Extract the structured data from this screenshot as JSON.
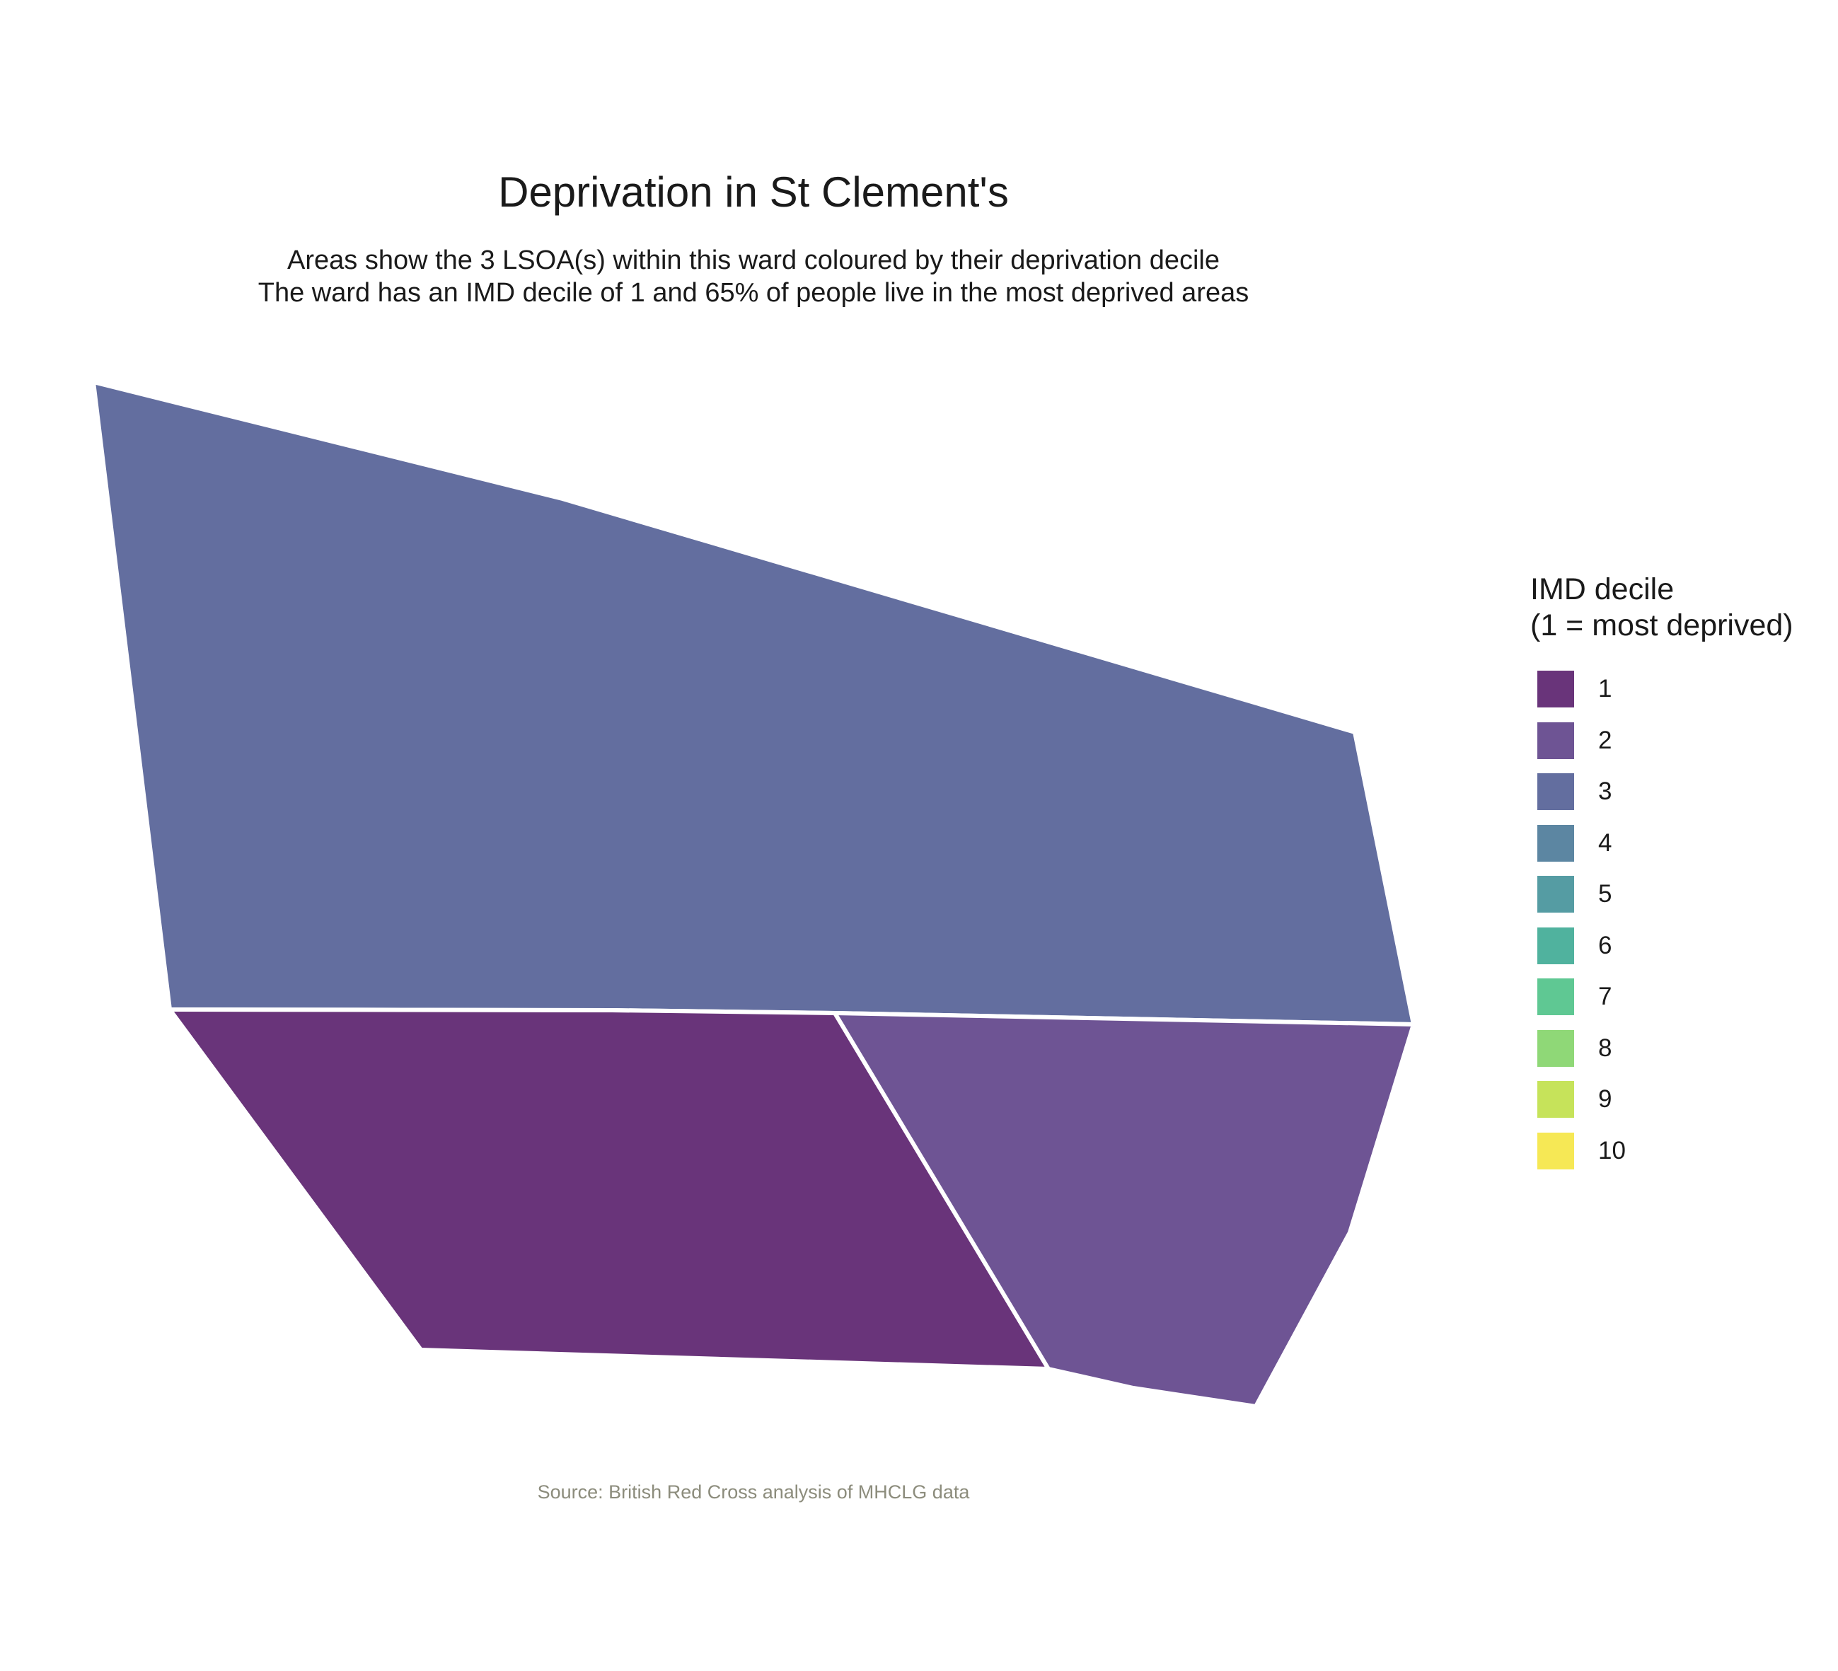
{
  "title": "Deprivation in St Clement's",
  "subtitle": {
    "line1": "Areas show the 3 LSOA(s) within this ward coloured by their deprivation decile",
    "line2": "The ward has an IMD decile of 1 and 65% of people live in the most deprived areas"
  },
  "legend": {
    "title_line1": "IMD decile",
    "title_line2": "(1 = most deprived)",
    "items": [
      {
        "label": "1",
        "color": "#69347a"
      },
      {
        "label": "2",
        "color": "#6e5494"
      },
      {
        "label": "3",
        "color": "#636e9f"
      },
      {
        "label": "4",
        "color": "#5c86a2"
      },
      {
        "label": "5",
        "color": "#559ca3"
      },
      {
        "label": "6",
        "color": "#50b29e"
      },
      {
        "label": "7",
        "color": "#5fc893"
      },
      {
        "label": "8",
        "color": "#8fd877"
      },
      {
        "label": "9",
        "color": "#c6e35a"
      },
      {
        "label": "10",
        "color": "#f6e855"
      }
    ]
  },
  "areas": [
    {
      "decile": 3,
      "color": "#636e9f"
    },
    {
      "decile": 1,
      "color": "#69347a"
    },
    {
      "decile": 2,
      "color": "#6e5494"
    }
  ],
  "caption": "Source: British Red Cross analysis of MHCLG data"
}
